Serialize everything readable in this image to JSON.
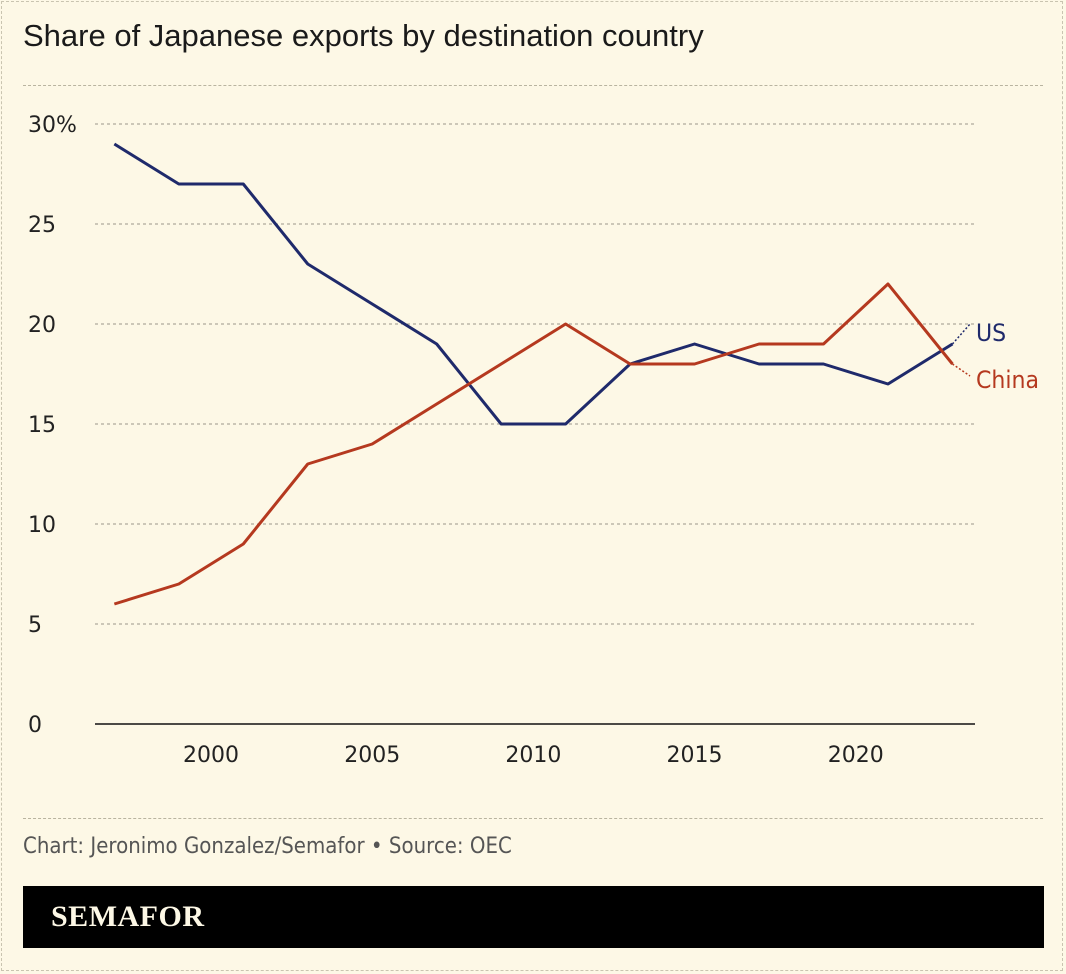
{
  "title": "Share of Japanese exports by destination country",
  "credit": "Chart: Jeronimo Gonzalez/Semafor • Source: OEC",
  "logo": "SEMAFOR",
  "colors": {
    "US": "#1f2a6b",
    "China": "#b5391f",
    "background": "#fdf8e6"
  },
  "chart_data": {
    "type": "line",
    "title": "Share of Japanese exports by destination country",
    "x": [
      1997,
      1999,
      2001,
      2003,
      2005,
      2007,
      2009,
      2011,
      2013,
      2015,
      2017,
      2019,
      2021,
      2023
    ],
    "series": [
      {
        "name": "US",
        "values": [
          29,
          27,
          27,
          23,
          21,
          19,
          15,
          15,
          18,
          19,
          18,
          18,
          17,
          19
        ]
      },
      {
        "name": "China",
        "values": [
          6,
          7,
          9,
          13,
          14,
          16,
          18,
          20,
          18,
          18,
          19,
          19,
          22,
          18
        ]
      }
    ],
    "xlim": [
      1996.4,
      2023.7
    ],
    "ylim": [
      0,
      30
    ],
    "xticks": [
      2000,
      2005,
      2010,
      2015,
      2020
    ],
    "yticks": [
      0,
      5,
      10,
      15,
      20,
      25,
      30
    ],
    "ytick_labels": [
      "0",
      "5",
      "10",
      "15",
      "20",
      "25",
      "30%"
    ],
    "grid": "horizontal dashed",
    "legend": "direct labels at right end"
  }
}
